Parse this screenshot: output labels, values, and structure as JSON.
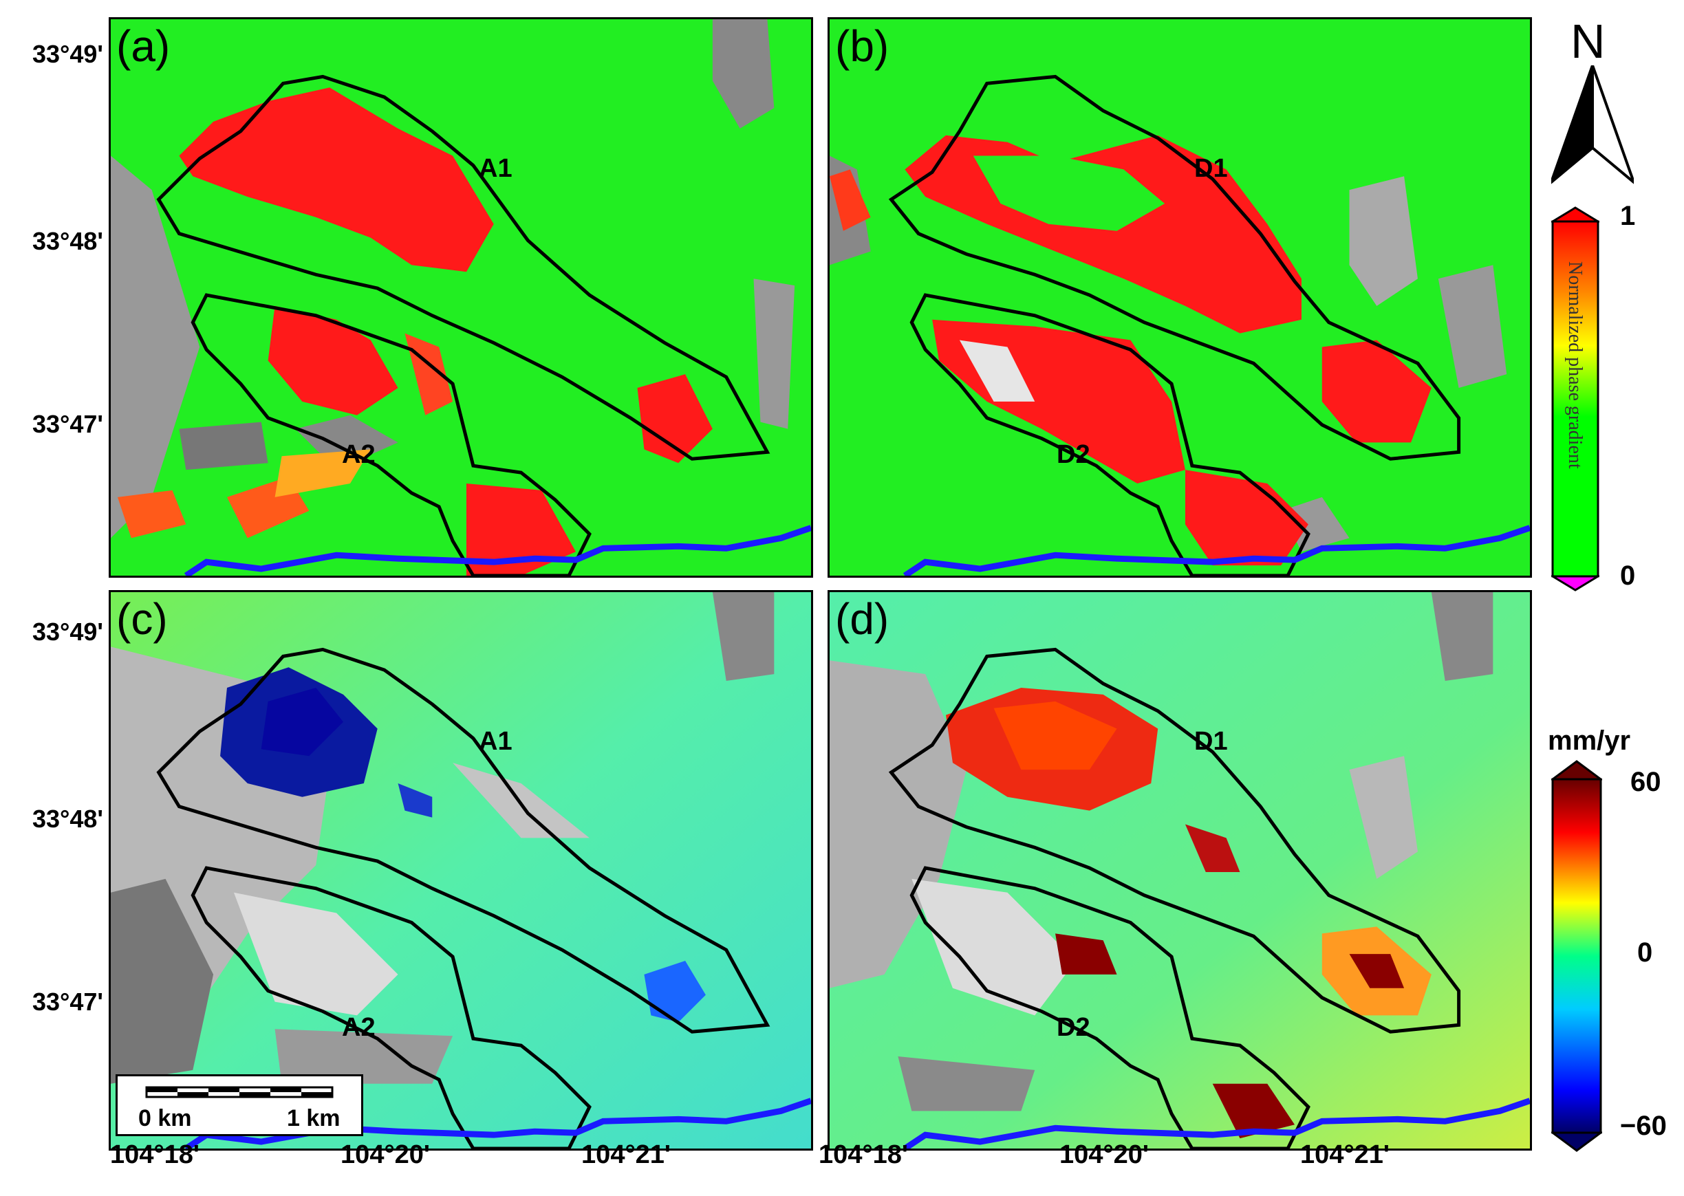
{
  "panels": [
    {
      "id": "a",
      "label": "(a)",
      "zones": [
        "A1",
        "A2"
      ],
      "type": "gradient"
    },
    {
      "id": "b",
      "label": "(b)",
      "zones": [
        "D1",
        "D2"
      ],
      "type": "gradient"
    },
    {
      "id": "c",
      "label": "(c)",
      "zones": [
        "A1",
        "A2"
      ],
      "type": "velocity-neg"
    },
    {
      "id": "d",
      "label": "(d)",
      "zones": [
        "D1",
        "D2"
      ],
      "type": "velocity-pos"
    }
  ],
  "latitude_labels_top": [
    "33°49'",
    "33°48'",
    "33°47'"
  ],
  "latitude_labels_bottom": [
    "33°49'",
    "33°48'",
    "33°47'"
  ],
  "longitude_labels": [
    "104°18'",
    "104°20'",
    "104°21'",
    "104°18'",
    "104°20'",
    "104°21'"
  ],
  "north_arrow": {
    "label": "N",
    "icon": "north-arrow-icon"
  },
  "colorbar_gradient": {
    "max": "1",
    "min": "0",
    "title": "Normalized phase gradient",
    "colors": [
      "#ff00ff",
      "#00ff00",
      "#ffff00",
      "#ff8000",
      "#ff0000"
    ]
  },
  "colorbar_velocity": {
    "unit": "mm/yr",
    "max": "60",
    "mid": "0",
    "min": "−60",
    "colors": [
      "#000066",
      "#0000ff",
      "#00ffff",
      "#00ff80",
      "#ffff00",
      "#ff0000",
      "#660000"
    ]
  },
  "scalebar": {
    "left": "0 km",
    "right": "1 km"
  },
  "colors": {
    "landslide_outline": "#000000",
    "river": "#1a1aff",
    "gradient_bg": "#22ee22",
    "velocity_bg": "#44ee99"
  }
}
